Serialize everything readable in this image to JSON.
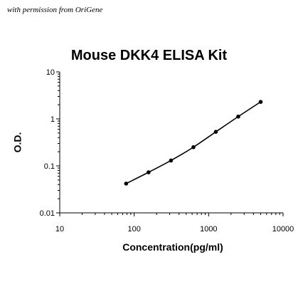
{
  "credit": "with permission from OriGene",
  "chart_data": {
    "type": "line",
    "title": "Mouse DKK4 ELISA Kit",
    "xlabel": "Concentration(pg/ml)",
    "ylabel": "O.D.",
    "xscale": "log",
    "yscale": "log",
    "xlim": [
      10,
      10000
    ],
    "ylim": [
      0.01,
      10
    ],
    "xticks": [
      "10",
      "100",
      "1000",
      "10000"
    ],
    "yticks": [
      "0.01",
      "0.1",
      "1",
      "10"
    ],
    "grid": false,
    "legend": "none",
    "series": [
      {
        "x": [
          78,
          156,
          312,
          625,
          1250,
          2500,
          5000
        ],
        "y": [
          0.042,
          0.073,
          0.13,
          0.25,
          0.53,
          1.12,
          2.3
        ]
      }
    ],
    "color": "#000000"
  }
}
